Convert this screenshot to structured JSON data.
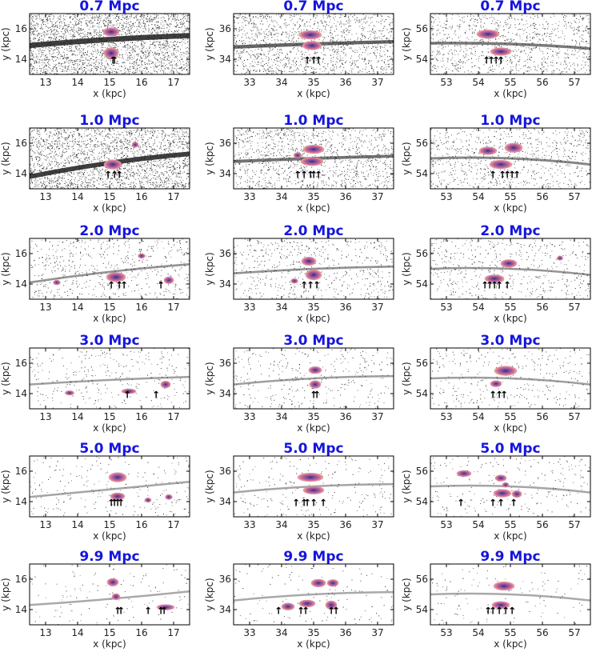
{
  "figure": {
    "colors": {
      "title": "#1515dd",
      "stream_dark": "#1e1e1e",
      "blob_colors": [
        "#3a2a6e",
        "#7a4f9e",
        "#b25f9b",
        "#e07b8e",
        "#f6b89a",
        "#fde3c8"
      ]
    }
  },
  "chart_data": [
    {
      "type": "scatter",
      "title": "0.7 Mpc",
      "xlabel": "x (kpc)",
      "ylabel": "y (kpc)",
      "xlim": [
        12.5,
        17.5
      ],
      "ylim": [
        13.0,
        17.0
      ],
      "xticks": [
        13,
        14,
        15,
        16,
        17
      ],
      "yticks": [
        14,
        16
      ],
      "density": 1.0,
      "band": [
        [
          12.5,
          14.9
        ],
        [
          15.0,
          15.3
        ],
        [
          17.5,
          15.55
        ]
      ],
      "blobs": [
        [
          15.05,
          15.8,
          0.4,
          0.35
        ],
        [
          15.05,
          14.4,
          0.35,
          0.5
        ]
      ],
      "arrows": [
        15.1,
        15.15
      ]
    },
    {
      "type": "scatter",
      "title": "0.7 Mpc",
      "xlabel": "x (kpc)",
      "ylabel": "y (kpc)",
      "xlim": [
        32.5,
        37.5
      ],
      "ylim": [
        33.0,
        37.0
      ],
      "xticks": [
        33,
        34,
        35,
        36,
        37
      ],
      "yticks": [
        34,
        36
      ],
      "density": 0.55,
      "band": [
        [
          32.5,
          34.8
        ],
        [
          35.0,
          35.0
        ],
        [
          37.5,
          35.15
        ]
      ],
      "blobs": [
        [
          34.9,
          35.6,
          0.6,
          0.35
        ],
        [
          34.95,
          34.9,
          0.5,
          0.35
        ]
      ],
      "arrows": [
        34.8,
        35.0,
        35.15
      ]
    },
    {
      "type": "scatter",
      "title": "0.7 Mpc",
      "xlabel": "x (kpc)",
      "ylabel": "y (kpc)",
      "xlim": [
        52.5,
        57.5
      ],
      "ylim": [
        53.0,
        57.0
      ],
      "xticks": [
        53,
        54,
        55,
        56,
        57
      ],
      "yticks": [
        54,
        56
      ],
      "density": 0.4,
      "band": [
        [
          52.5,
          55.05
        ],
        [
          55.0,
          55.0
        ],
        [
          57.5,
          54.7
        ]
      ],
      "blobs": [
        [
          54.3,
          55.65,
          0.6,
          0.35
        ],
        [
          54.7,
          54.5,
          0.55,
          0.3
        ]
      ],
      "arrows": [
        54.25,
        54.4,
        54.55,
        54.7
      ]
    },
    {
      "type": "scatter",
      "title": "1.0 Mpc",
      "xlabel": "x (kpc)",
      "ylabel": "y (kpc)",
      "xlim": [
        12.5,
        17.5
      ],
      "ylim": [
        13.0,
        17.0
      ],
      "xticks": [
        13,
        14,
        15,
        16,
        17
      ],
      "yticks": [
        14,
        16
      ],
      "density": 0.85,
      "band": [
        [
          12.5,
          13.8
        ],
        [
          15.0,
          14.7
        ],
        [
          17.5,
          15.3
        ]
      ],
      "blobs": [
        [
          15.1,
          14.6,
          0.45,
          0.4
        ],
        [
          15.8,
          15.9,
          0.1,
          0.15
        ]
      ],
      "arrows": [
        14.95,
        15.15,
        15.3
      ]
    },
    {
      "type": "scatter",
      "title": "1.0 Mpc",
      "xlabel": "x (kpc)",
      "ylabel": "y (kpc)",
      "xlim": [
        32.5,
        37.5
      ],
      "ylim": [
        33.0,
        37.0
      ],
      "xticks": [
        33,
        34,
        35,
        36,
        37
      ],
      "yticks": [
        34,
        36
      ],
      "density": 0.45,
      "band": [
        [
          32.5,
          34.8
        ],
        [
          35.0,
          35.0
        ],
        [
          37.5,
          35.15
        ]
      ],
      "blobs": [
        [
          35.0,
          35.6,
          0.55,
          0.35
        ],
        [
          34.95,
          34.8,
          0.6,
          0.35
        ],
        [
          34.5,
          35.2,
          0.15,
          0.15
        ]
      ],
      "arrows": [
        34.5,
        34.7,
        34.9,
        35.0,
        35.15
      ]
    },
    {
      "type": "scatter",
      "title": "1.0 Mpc",
      "xlabel": "x (kpc)",
      "ylabel": "y (kpc)",
      "xlim": [
        52.5,
        57.5
      ],
      "ylim": [
        53.0,
        57.0
      ],
      "xticks": [
        53,
        54,
        55,
        56,
        57
      ],
      "yticks": [
        54,
        56
      ],
      "density": 0.3,
      "band": [
        [
          52.5,
          55.0
        ],
        [
          55.0,
          55.0
        ],
        [
          57.5,
          54.6
        ]
      ],
      "blobs": [
        [
          54.3,
          55.5,
          0.45,
          0.3
        ],
        [
          55.1,
          55.7,
          0.45,
          0.4
        ],
        [
          54.7,
          54.6,
          0.6,
          0.35
        ]
      ],
      "arrows": [
        54.45,
        54.75,
        54.9,
        55.05,
        55.2
      ]
    },
    {
      "type": "scatter",
      "title": "2.0 Mpc",
      "xlabel": "x (kpc)",
      "ylabel": "y (kpc)",
      "xlim": [
        12.5,
        17.5
      ],
      "ylim": [
        13.0,
        17.0
      ],
      "xticks": [
        13,
        14,
        15,
        16,
        17
      ],
      "yticks": [
        14,
        16
      ],
      "density": 0.22,
      "band": [
        [
          12.5,
          14.1
        ],
        [
          15.0,
          14.8
        ],
        [
          17.5,
          15.3
        ]
      ],
      "blobs": [
        [
          15.2,
          14.45,
          0.5,
          0.4
        ],
        [
          13.35,
          14.1,
          0.12,
          0.1
        ],
        [
          16.85,
          14.25,
          0.2,
          0.25
        ],
        [
          16.0,
          15.85,
          0.12,
          0.1
        ]
      ],
      "arrows": [
        15.05,
        15.3,
        15.45,
        16.6
      ]
    },
    {
      "type": "scatter",
      "title": "2.0 Mpc",
      "xlabel": "x (kpc)",
      "ylabel": "y (kpc)",
      "xlim": [
        32.5,
        37.5
      ],
      "ylim": [
        33.0,
        37.0
      ],
      "xticks": [
        33,
        34,
        35,
        36,
        37
      ],
      "yticks": [
        34,
        36
      ],
      "density": 0.22,
      "band": [
        [
          32.5,
          34.7
        ],
        [
          35.0,
          35.0
        ],
        [
          37.5,
          35.15
        ]
      ],
      "blobs": [
        [
          34.85,
          35.5,
          0.35,
          0.35
        ],
        [
          35.0,
          34.6,
          0.4,
          0.45
        ],
        [
          34.4,
          34.2,
          0.12,
          0.1
        ]
      ],
      "arrows": [
        34.7,
        34.9,
        35.1
      ]
    },
    {
      "type": "scatter",
      "title": "2.0 Mpc",
      "xlabel": "x (kpc)",
      "ylabel": "y (kpc)",
      "xlim": [
        52.5,
        57.5
      ],
      "ylim": [
        53.0,
        57.0
      ],
      "xticks": [
        53,
        54,
        55,
        56,
        57
      ],
      "yticks": [
        54,
        56
      ],
      "density": 0.2,
      "band": [
        [
          52.5,
          55.0
        ],
        [
          55.0,
          55.0
        ],
        [
          57.5,
          54.6
        ]
      ],
      "blobs": [
        [
          54.95,
          55.35,
          0.4,
          0.3
        ],
        [
          54.5,
          54.35,
          0.5,
          0.3
        ],
        [
          56.55,
          55.7,
          0.08,
          0.08
        ]
      ],
      "arrows": [
        54.2,
        54.35,
        54.5,
        54.65,
        54.9
      ]
    },
    {
      "type": "scatter",
      "title": "3.0 Mpc",
      "xlabel": "x (kpc)",
      "ylabel": "y (kpc)",
      "xlim": [
        12.5,
        17.5
      ],
      "ylim": [
        13.0,
        17.0
      ],
      "xticks": [
        13,
        14,
        15,
        16,
        17
      ],
      "yticks": [
        14,
        16
      ],
      "density": 0.12,
      "band": [
        [
          12.5,
          14.6
        ],
        [
          15.0,
          14.9
        ],
        [
          17.5,
          15.1
        ]
      ],
      "blobs": [
        [
          13.75,
          14.05,
          0.18,
          0.08
        ],
        [
          15.6,
          14.15,
          0.35,
          0.1
        ],
        [
          16.75,
          14.6,
          0.2,
          0.25
        ]
      ],
      "arrows": [
        15.55,
        16.45
      ]
    },
    {
      "type": "scatter",
      "title": "3.0 Mpc",
      "xlabel": "x (kpc)",
      "ylabel": "y (kpc)",
      "xlim": [
        32.5,
        37.5
      ],
      "ylim": [
        33.0,
        37.0
      ],
      "xticks": [
        33,
        34,
        35,
        36,
        37
      ],
      "yticks": [
        34,
        36
      ],
      "density": 0.13,
      "band": [
        [
          32.5,
          34.6
        ],
        [
          35.0,
          35.0
        ],
        [
          37.5,
          35.15
        ]
      ],
      "blobs": [
        [
          35.05,
          35.55,
          0.3,
          0.25
        ],
        [
          35.05,
          34.6,
          0.25,
          0.3
        ]
      ],
      "arrows": [
        35.0,
        35.1
      ]
    },
    {
      "type": "scatter",
      "title": "3.0 Mpc",
      "xlabel": "x (kpc)",
      "ylabel": "y (kpc)",
      "xlim": [
        52.5,
        57.5
      ],
      "ylim": [
        53.0,
        57.0
      ],
      "xticks": [
        53,
        54,
        55,
        56,
        57
      ],
      "yticks": [
        54,
        56
      ],
      "density": 0.13,
      "band": [
        [
          52.5,
          55.0
        ],
        [
          55.0,
          55.0
        ],
        [
          57.5,
          54.6
        ]
      ],
      "blobs": [
        [
          54.85,
          55.5,
          0.6,
          0.4
        ],
        [
          54.55,
          54.65,
          0.25,
          0.2
        ]
      ],
      "arrows": [
        54.45,
        54.65,
        54.8
      ]
    },
    {
      "type": "scatter",
      "title": "5.0 Mpc",
      "xlabel": "x (kpc)",
      "ylabel": "y (kpc)",
      "xlim": [
        12.5,
        17.5
      ],
      "ylim": [
        13.0,
        17.0
      ],
      "xticks": [
        13,
        14,
        15,
        16,
        17
      ],
      "yticks": [
        14,
        16
      ],
      "density": 0.09,
      "band": [
        [
          12.5,
          14.3
        ],
        [
          15.0,
          14.8
        ],
        [
          17.5,
          15.3
        ]
      ],
      "blobs": [
        [
          15.25,
          15.6,
          0.45,
          0.4
        ],
        [
          15.25,
          14.35,
          0.35,
          0.25
        ],
        [
          16.2,
          14.1,
          0.1,
          0.08
        ],
        [
          16.85,
          14.3,
          0.12,
          0.12
        ]
      ],
      "arrows": [
        15.05,
        15.15,
        15.25,
        15.35
      ]
    },
    {
      "type": "scatter",
      "title": "5.0 Mpc",
      "xlabel": "x (kpc)",
      "ylabel": "y (kpc)",
      "xlim": [
        32.5,
        37.5
      ],
      "ylim": [
        33.0,
        37.0
      ],
      "xticks": [
        33,
        34,
        35,
        36,
        37
      ],
      "yticks": [
        34,
        36
      ],
      "density": 0.09,
      "band": [
        [
          32.5,
          34.6
        ],
        [
          35.0,
          35.0
        ],
        [
          37.5,
          35.15
        ]
      ],
      "blobs": [
        [
          34.9,
          35.6,
          0.7,
          0.35
        ],
        [
          35.0,
          34.75,
          0.55,
          0.3
        ]
      ],
      "arrows": [
        34.45,
        34.7,
        34.8,
        35.0,
        35.3
      ]
    },
    {
      "type": "scatter",
      "title": "5.0 Mpc",
      "xlabel": "x (kpc)",
      "ylabel": "y (kpc)",
      "xlim": [
        52.5,
        57.5
      ],
      "ylim": [
        53.0,
        57.0
      ],
      "xticks": [
        53,
        54,
        55,
        56,
        57
      ],
      "yticks": [
        54,
        56
      ],
      "density": 0.09,
      "band": [
        [
          52.5,
          55.0
        ],
        [
          55.0,
          55.0
        ],
        [
          57.5,
          54.6
        ]
      ],
      "blobs": [
        [
          53.55,
          55.85,
          0.35,
          0.2
        ],
        [
          54.7,
          55.55,
          0.25,
          0.2
        ],
        [
          54.75,
          54.55,
          0.45,
          0.3
        ],
        [
          55.2,
          54.5,
          0.2,
          0.25
        ],
        [
          54.85,
          55.1,
          0.1,
          0.1
        ]
      ],
      "arrows": [
        53.45,
        54.45,
        54.7,
        55.1
      ]
    },
    {
      "type": "scatter",
      "title": "9.9 Mpc",
      "xlabel": "x (kpc)",
      "ylabel": "y (kpc)",
      "xlim": [
        12.5,
        17.5
      ],
      "ylim": [
        13.0,
        17.0
      ],
      "xticks": [
        13,
        14,
        15,
        16,
        17
      ],
      "yticks": [
        14,
        16
      ],
      "density": 0.05,
      "band": [
        [
          12.5,
          14.3
        ],
        [
          15.0,
          14.7
        ],
        [
          17.5,
          15.2
        ]
      ],
      "blobs": [
        [
          15.1,
          15.8,
          0.25,
          0.3
        ],
        [
          15.2,
          14.85,
          0.15,
          0.2
        ],
        [
          16.75,
          14.15,
          0.45,
          0.15
        ]
      ],
      "arrows": [
        15.25,
        15.35,
        16.2,
        16.6,
        16.7
      ]
    },
    {
      "type": "scatter",
      "title": "9.9 Mpc",
      "xlabel": "x (kpc)",
      "ylabel": "y (kpc)",
      "xlim": [
        32.5,
        37.5
      ],
      "ylim": [
        33.0,
        37.0
      ],
      "xticks": [
        33,
        34,
        35,
        36,
        37
      ],
      "yticks": [
        34,
        36
      ],
      "density": 0.05,
      "band": [
        [
          32.5,
          34.6
        ],
        [
          35.0,
          35.0
        ],
        [
          37.5,
          35.15
        ]
      ],
      "blobs": [
        [
          34.2,
          34.2,
          0.3,
          0.25
        ],
        [
          34.8,
          34.4,
          0.4,
          0.25
        ],
        [
          35.15,
          35.75,
          0.35,
          0.3
        ],
        [
          35.6,
          35.75,
          0.25,
          0.25
        ],
        [
          35.55,
          34.3,
          0.25,
          0.35
        ]
      ],
      "arrows": [
        33.9,
        34.6,
        34.75,
        35.55,
        35.7
      ]
    },
    {
      "type": "scatter",
      "title": "9.9 Mpc",
      "xlabel": "x (kpc)",
      "ylabel": "y (kpc)",
      "xlim": [
        52.5,
        57.5
      ],
      "ylim": [
        53.0,
        57.0
      ],
      "xticks": [
        53,
        54,
        55,
        56,
        57
      ],
      "yticks": [
        54,
        56
      ],
      "density": 0.05,
      "band": [
        [
          52.5,
          55.0
        ],
        [
          55.0,
          55.0
        ],
        [
          57.5,
          54.6
        ]
      ],
      "blobs": [
        [
          54.8,
          55.55,
          0.55,
          0.35
        ],
        [
          54.7,
          54.3,
          0.45,
          0.25
        ]
      ],
      "arrows": [
        54.3,
        54.45,
        54.65,
        54.85,
        55.05
      ]
    }
  ]
}
